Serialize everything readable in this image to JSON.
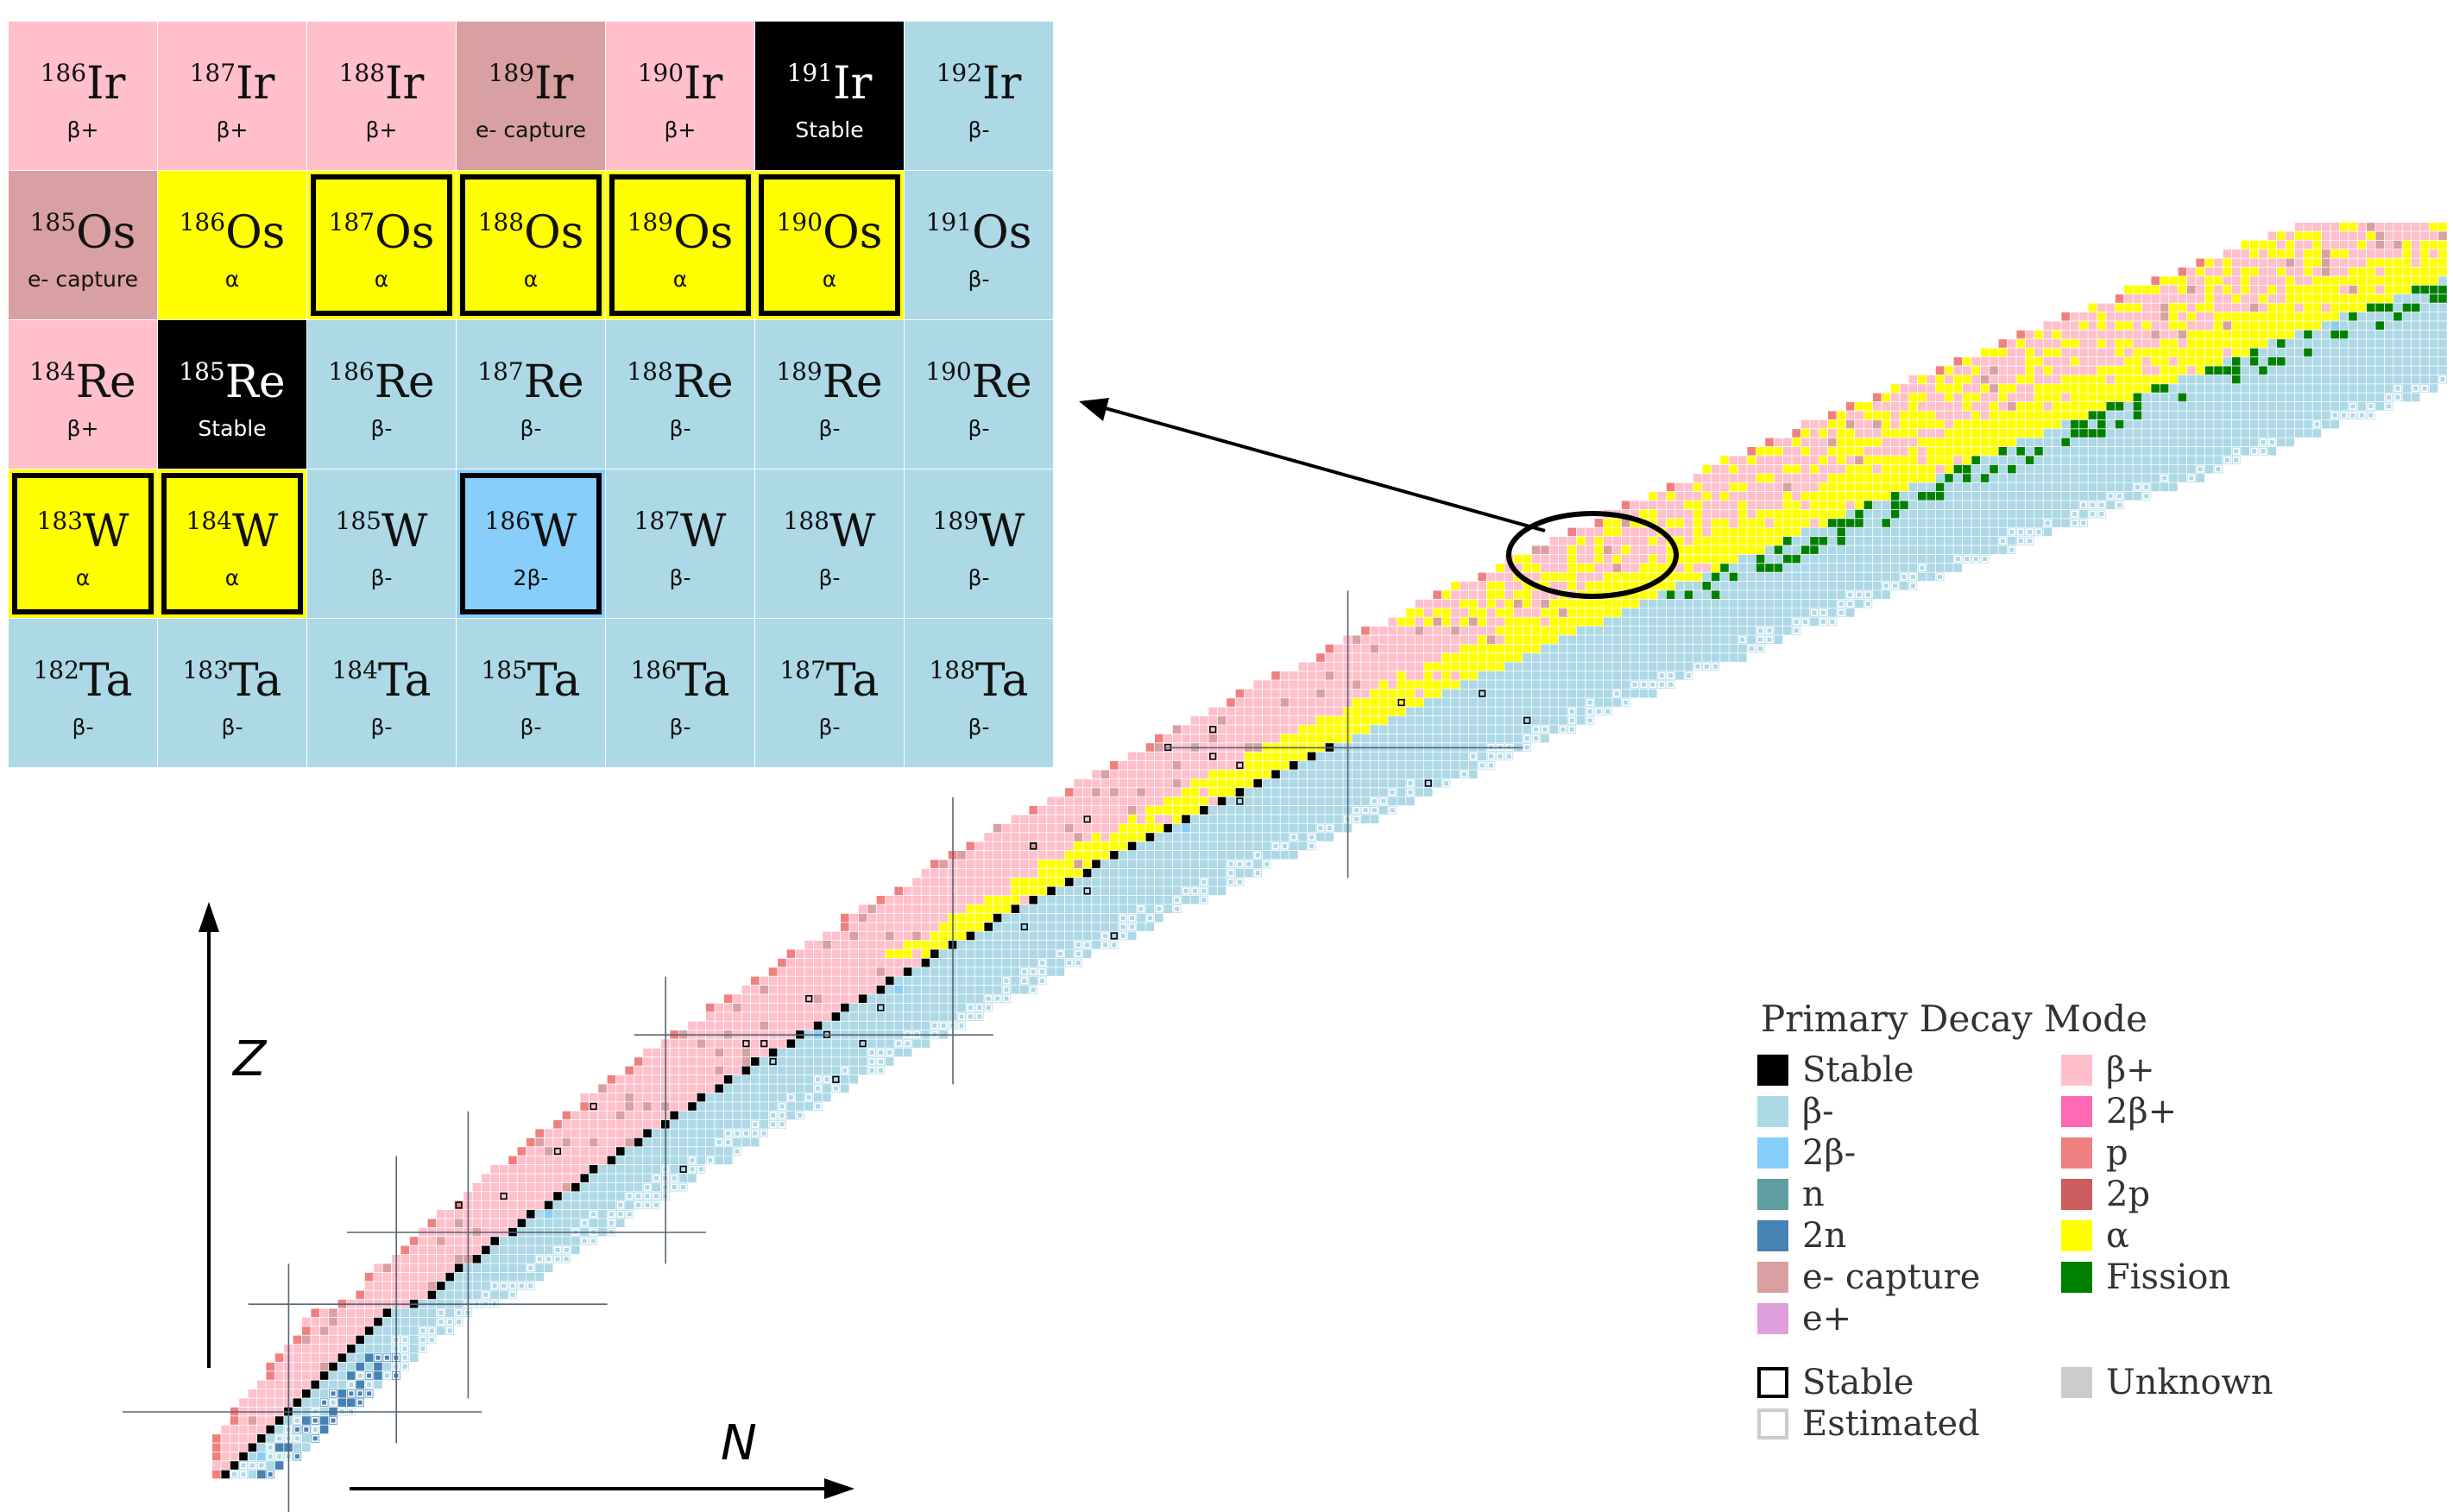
{
  "inset": {
    "rows": [
      [
        {
          "mass": "186",
          "symbol": "Ir",
          "mode": "β+",
          "color": "#ffc0cb"
        },
        {
          "mass": "187",
          "symbol": "Ir",
          "mode": "β+",
          "color": "#ffc0cb"
        },
        {
          "mass": "188",
          "symbol": "Ir",
          "mode": "β+",
          "color": "#ffc0cb"
        },
        {
          "mass": "189",
          "symbol": "Ir",
          "mode": "e- capture",
          "color": "#d8a0a0"
        },
        {
          "mass": "190",
          "symbol": "Ir",
          "mode": "β+",
          "color": "#ffc0cb"
        },
        {
          "mass": "191",
          "symbol": "Ir",
          "mode": "Stable",
          "color": "#000000",
          "text_color": "#ffffff"
        },
        {
          "mass": "192",
          "symbol": "Ir",
          "mode": "β-",
          "color": "#add8e6"
        }
      ],
      [
        {
          "mass": "185",
          "symbol": "Os",
          "mode": "e- capture",
          "color": "#d8a0a0"
        },
        {
          "mass": "186",
          "symbol": "Os",
          "mode": "α",
          "color": "#ffff00"
        },
        {
          "mass": "187",
          "symbol": "Os",
          "mode": "α",
          "color": "#ffff00",
          "bold_border": true
        },
        {
          "mass": "188",
          "symbol": "Os",
          "mode": "α",
          "color": "#ffff00",
          "bold_border": true
        },
        {
          "mass": "189",
          "symbol": "Os",
          "mode": "α",
          "color": "#ffff00",
          "bold_border": true
        },
        {
          "mass": "190",
          "symbol": "Os",
          "mode": "α",
          "color": "#ffff00",
          "bold_border": true
        },
        {
          "mass": "191",
          "symbol": "Os",
          "mode": "β-",
          "color": "#add8e6"
        }
      ],
      [
        {
          "mass": "184",
          "symbol": "Re",
          "mode": "β+",
          "color": "#ffc0cb"
        },
        {
          "mass": "185",
          "symbol": "Re",
          "mode": "Stable",
          "color": "#000000",
          "text_color": "#ffffff"
        },
        {
          "mass": "186",
          "symbol": "Re",
          "mode": "β-",
          "color": "#add8e6"
        },
        {
          "mass": "187",
          "symbol": "Re",
          "mode": "β-",
          "color": "#add8e6"
        },
        {
          "mass": "188",
          "symbol": "Re",
          "mode": "β-",
          "color": "#add8e6"
        },
        {
          "mass": "189",
          "symbol": "Re",
          "mode": "β-",
          "color": "#add8e6"
        },
        {
          "mass": "190",
          "symbol": "Re",
          "mode": "β-",
          "color": "#add8e6"
        }
      ],
      [
        {
          "mass": "183",
          "symbol": "W",
          "mode": "α",
          "color": "#ffff00",
          "bold_border": true
        },
        {
          "mass": "184",
          "symbol": "W",
          "mode": "α",
          "color": "#ffff00",
          "bold_border": true
        },
        {
          "mass": "185",
          "symbol": "W",
          "mode": "β-",
          "color": "#add8e6"
        },
        {
          "mass": "186",
          "symbol": "W",
          "mode": "2β-",
          "color": "#87cefa",
          "bold_border": true
        },
        {
          "mass": "187",
          "symbol": "W",
          "mode": "β-",
          "color": "#add8e6"
        },
        {
          "mass": "188",
          "symbol": "W",
          "mode": "β-",
          "color": "#add8e6"
        },
        {
          "mass": "189",
          "symbol": "W",
          "mode": "β-",
          "color": "#add8e6"
        }
      ],
      [
        {
          "mass": "182",
          "symbol": "Ta",
          "mode": "β-",
          "color": "#add8e6"
        },
        {
          "mass": "183",
          "symbol": "Ta",
          "mode": "β-",
          "color": "#add8e6"
        },
        {
          "mass": "184",
          "symbol": "Ta",
          "mode": "β-",
          "color": "#add8e6"
        },
        {
          "mass": "185",
          "symbol": "Ta",
          "mode": "β-",
          "color": "#add8e6"
        },
        {
          "mass": "186",
          "symbol": "Ta",
          "mode": "β-",
          "color": "#add8e6"
        },
        {
          "mass": "187",
          "symbol": "Ta",
          "mode": "β-",
          "color": "#add8e6"
        },
        {
          "mass": "188",
          "symbol": "Ta",
          "mode": "β-",
          "color": "#add8e6"
        }
      ]
    ]
  },
  "axes": {
    "z_label": "Z",
    "n_label": "N"
  },
  "colors": {
    "stable": "#000000",
    "beta_minus": "#add8e6",
    "beta_plus": "#ffc0cb",
    "double_beta_minus": "#87cefa",
    "double_beta_plus": "#ff69b4",
    "neutron": "#5f9ea0",
    "two_neutron": "#4682b4",
    "proton": "#f08080",
    "two_proton": "#cd5c5c",
    "electron_capture": "#d8a0a0",
    "positron": "#dda0dd",
    "alpha": "#ffff00",
    "fission": "#008000",
    "unknown": "#cccccc"
  },
  "legend": {
    "title": "Primary Decay Mode",
    "left_column": [
      {
        "label": "Stable",
        "color": "#000000"
      },
      {
        "label": "β-",
        "color": "#add8e6"
      },
      {
        "label": "2β-",
        "color": "#87cefa"
      },
      {
        "label": "n",
        "color": "#5f9ea0"
      },
      {
        "label": "2n",
        "color": "#4682b4"
      },
      {
        "label": "e- capture",
        "color": "#d8a0a0"
      },
      {
        "label": "e+",
        "color": "#dda0dd"
      }
    ],
    "right_column": [
      {
        "label": "β+",
        "color": "#ffc0cb"
      },
      {
        "label": "2β+",
        "color": "#ff69b4"
      },
      {
        "label": "p",
        "color": "#f08080"
      },
      {
        "label": "2p",
        "color": "#cd5c5c"
      },
      {
        "label": "α",
        "color": "#ffff00"
      },
      {
        "label": "Fission",
        "color": "#008000"
      }
    ],
    "markers": [
      {
        "label": "Stable",
        "style": "black-outline"
      },
      {
        "label": "Estimated",
        "style": "gray-outline"
      },
      {
        "label": "Unknown",
        "color": "#cccccc"
      }
    ]
  }
}
